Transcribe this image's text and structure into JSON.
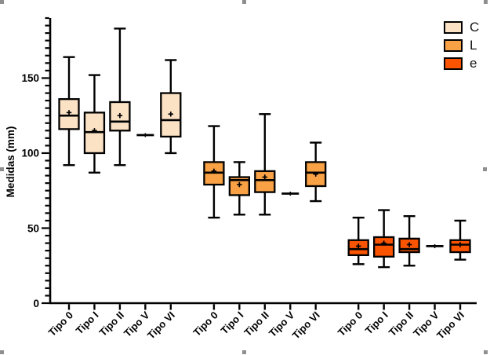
{
  "chart_data": {
    "type": "boxplot",
    "title": "",
    "xlabel": "",
    "ylabel": "Medidas (mm)",
    "ylim": [
      0,
      190
    ],
    "yticks": [
      0,
      50,
      100,
      150
    ],
    "minor_tick_step": 5,
    "grid": false,
    "legend_position": "top-right",
    "categories": [
      "Tipo 0",
      "Tipo I",
      "Tipo II",
      "Tipo V",
      "Tipo VI"
    ],
    "series": [
      {
        "name": "C",
        "color": "#FCE2C5",
        "boxes": [
          {
            "category": "Tipo 0",
            "min": 92,
            "q1": 116,
            "median": 125,
            "q3": 136,
            "max": 164,
            "mean": 127
          },
          {
            "category": "Tipo I",
            "min": 87,
            "q1": 100,
            "median": 114,
            "q3": 127,
            "max": 152,
            "mean": 115
          },
          {
            "category": "Tipo II",
            "min": 92,
            "q1": 115,
            "median": 121,
            "q3": 134,
            "max": 183,
            "mean": 125
          },
          {
            "category": "Tipo V",
            "value": 112
          },
          {
            "category": "Tipo VI",
            "min": 100,
            "q1": 111,
            "median": 122,
            "q3": 140,
            "max": 162,
            "mean": 126
          }
        ]
      },
      {
        "name": "L",
        "color": "#F9A245",
        "boxes": [
          {
            "category": "Tipo 0",
            "min": 57,
            "q1": 79,
            "median": 87,
            "q3": 94,
            "max": 118,
            "mean": 88
          },
          {
            "category": "Tipo I",
            "min": 59,
            "q1": 72,
            "median": 82,
            "q3": 84,
            "max": 94,
            "mean": 79
          },
          {
            "category": "Tipo II",
            "min": 59,
            "q1": 74,
            "median": 82,
            "q3": 88,
            "max": 126,
            "mean": 84
          },
          {
            "category": "Tipo V",
            "value": 73
          },
          {
            "category": "Tipo VI",
            "min": 68,
            "q1": 78,
            "median": 87,
            "q3": 94,
            "max": 107,
            "mean": 86
          }
        ]
      },
      {
        "name": "e",
        "color": "#FA5400",
        "boxes": [
          {
            "category": "Tipo 0",
            "min": 26,
            "q1": 32,
            "median": 36,
            "q3": 42,
            "max": 57,
            "mean": 38
          },
          {
            "category": "Tipo I",
            "min": 24,
            "q1": 31,
            "median": 39,
            "q3": 44,
            "max": 62,
            "mean": 40
          },
          {
            "category": "Tipo II",
            "min": 25,
            "q1": 34,
            "median": 36,
            "q3": 43,
            "max": 58,
            "mean": 39
          },
          {
            "category": "Tipo V",
            "value": 38
          },
          {
            "category": "Tipo VI",
            "min": 29,
            "q1": 34,
            "median": 39,
            "q3": 42,
            "max": 55,
            "mean": 39
          }
        ]
      }
    ]
  },
  "selection": {
    "handle_color": "#8f8f8f"
  }
}
